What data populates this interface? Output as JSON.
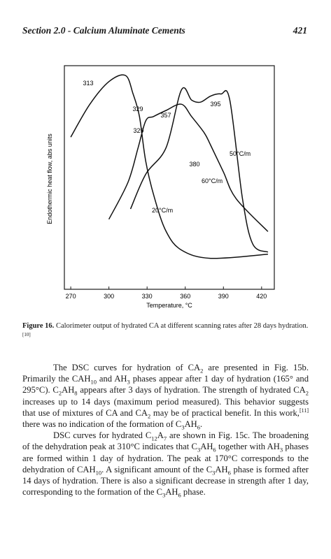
{
  "header": {
    "section": "Section 2.0 - Calcium Aluminate Cements",
    "page_number": "421"
  },
  "figure": {
    "ylabel": "Endothermic heat flow, abs units",
    "xlabel": "Temperature, °C",
    "x_ticks": [
      "270",
      "300",
      "330",
      "360",
      "390",
      "420"
    ],
    "peak_labels": [
      "313",
      "329",
      "357",
      "395",
      "329",
      "380"
    ],
    "curve_labels": [
      "50°C/m",
      "60°C/m",
      "20°C/m"
    ]
  },
  "chart_data": {
    "type": "line",
    "xlabel": "Temperature, °C",
    "ylabel": "Endothermic heat flow, abs units",
    "xlim": [
      265,
      430
    ],
    "x_ticks": [
      270,
      300,
      330,
      360,
      390,
      420
    ],
    "y_ticks_shown": false,
    "series": [
      {
        "name": "20°C/m",
        "x": [
          270,
          285,
          300,
          313,
          319,
          324,
          329,
          336,
          345,
          357,
          380,
          425
        ],
        "y": [
          0.7,
          0.86,
          0.97,
          1.0,
          0.91,
          0.8,
          0.58,
          0.4,
          0.24,
          0.15,
          0.11,
          0.13
        ]
      },
      {
        "name": "60°C/m",
        "x": [
          300,
          315,
          323,
          329,
          335,
          345,
          357,
          365,
          375,
          380,
          390,
          400,
          425
        ],
        "y": [
          0.3,
          0.48,
          0.65,
          0.78,
          0.8,
          0.83,
          0.86,
          0.8,
          0.72,
          0.66,
          0.53,
          0.4,
          0.24
        ]
      },
      {
        "name": "50°C/m",
        "x": [
          317,
          329,
          345,
          357,
          365,
          372,
          380,
          388,
          395,
          405,
          413,
          425
        ],
        "y": [
          0.35,
          0.52,
          0.65,
          0.93,
          0.88,
          0.87,
          0.9,
          0.91,
          0.88,
          0.4,
          0.18,
          0.14
        ]
      }
    ],
    "peak_annotations": [
      "313",
      "329",
      "357",
      "395",
      "329",
      "380"
    ]
  },
  "caption": {
    "label": "Figure 16.",
    "text": "Calorimeter output of hydrated CA at different scanning rates after 28 days hydration.",
    "ref": "[10]"
  },
  "body": {
    "p1": [
      "The DSC curves for hydration of CA",
      "2",
      " are presented in Fig. 15b. Primarily the CAH",
      "10",
      " and AH",
      "3",
      " phases appear after 1 day of hydration (165° and 295°C). C",
      "2",
      "AH",
      "8",
      " appears after 3 days of hydration. The strength of hydrated CA",
      "2",
      " increases up to 14 days (maximum period measured). This behavior suggests that use of mixtures of CA and CA",
      "2",
      " may be of practical benefit. In this work,",
      "[11]",
      " there was no indication of the formation of C",
      "3",
      "AH",
      "6",
      "."
    ],
    "p2": [
      "DSC curves for hydrated C",
      "12",
      "A",
      "7",
      " are shown in Fig. 15c. The broadening of the dehydration peak at 310°C indicates that C",
      "3",
      "AH",
      "6",
      " together with AH",
      "3",
      " phases are formed within 1 day of hydration. The peak at 170°C corresponds to the dehydration of CAH",
      "10",
      ". A significant amount of the C",
      "3",
      "AH",
      "6",
      " phase is formed after 14 days of hydration. There is also a significant decrease in strength after 1 day, corresponding to the formation of the C",
      "3",
      "AH",
      "6",
      " phase."
    ]
  }
}
